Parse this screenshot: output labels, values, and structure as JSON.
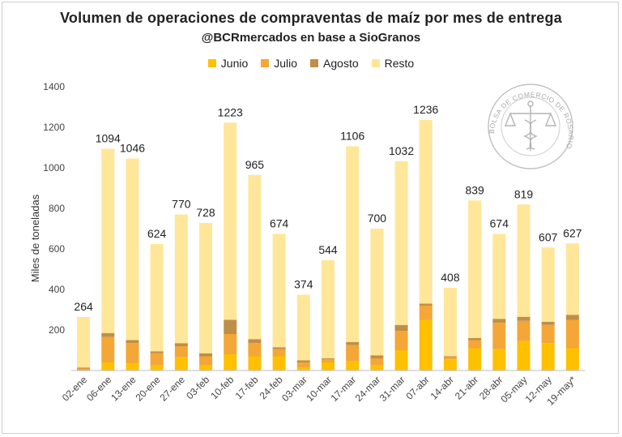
{
  "chart_data": {
    "type": "bar",
    "stacked": true,
    "title": "Volumen de operaciones de compraventas de maíz por mes de entrega",
    "subtitle": "@BCRmercados en base a SioGranos",
    "xlabel": "",
    "ylabel": "Miles de toneladas",
    "ylim": [
      0,
      1400
    ],
    "yticks": [
      200,
      400,
      600,
      800,
      1000,
      1200,
      1400
    ],
    "legend_position": "top",
    "categories": [
      "02-ene",
      "06-ene",
      "13-ene",
      "20-ene",
      "27-ene",
      "03-feb",
      "10-feb",
      "17-feb",
      "24-feb",
      "03-mar",
      "10-mar",
      "17-mar",
      "24-mar",
      "31-mar",
      "07-abr",
      "14-abr",
      "21-abr",
      "28-abr",
      "05-may",
      "12-may",
      "19-may*"
    ],
    "totals": [
      264,
      1094,
      1046,
      624,
      770,
      728,
      1223,
      965,
      674,
      374,
      544,
      1106,
      700,
      1032,
      1236,
      408,
      839,
      674,
      819,
      607,
      627
    ],
    "total_labels": [
      "264",
      "1094",
      "1046",
      "624",
      "770",
      "728",
      "1223",
      "965",
      "674",
      "374",
      "544",
      "1106",
      "700",
      "1032",
      "1236",
      "408",
      "839",
      "674",
      "819",
      "607",
      "627"
    ],
    "series": [
      {
        "name": "Junio",
        "color": "#FFC000",
        "values": [
          2,
          40,
          35,
          25,
          65,
          25,
          80,
          70,
          70,
          15,
          40,
          45,
          25,
          100,
          250,
          55,
          110,
          105,
          145,
          135,
          110
        ]
      },
      {
        "name": "Julio",
        "color": "#F4A636",
        "values": [
          8,
          125,
          100,
          60,
          55,
          45,
          100,
          65,
          35,
          25,
          15,
          80,
          35,
          95,
          70,
          10,
          40,
          130,
          100,
          90,
          140
        ]
      },
      {
        "name": "Agosto",
        "color": "#BF8F47",
        "values": [
          5,
          20,
          15,
          10,
          15,
          15,
          70,
          20,
          10,
          10,
          5,
          15,
          15,
          30,
          10,
          5,
          10,
          20,
          20,
          15,
          25
        ]
      },
      {
        "name": "Resto",
        "color": "#FFE699",
        "values": [
          249,
          909,
          896,
          529,
          635,
          643,
          973,
          810,
          559,
          324,
          484,
          966,
          625,
          807,
          906,
          338,
          679,
          419,
          554,
          367,
          352
        ]
      }
    ]
  },
  "watermark": {
    "text": "BOLSA DE COMERCIO DE ROSARIO",
    "icon": "caduceus-scales-seal-icon"
  }
}
